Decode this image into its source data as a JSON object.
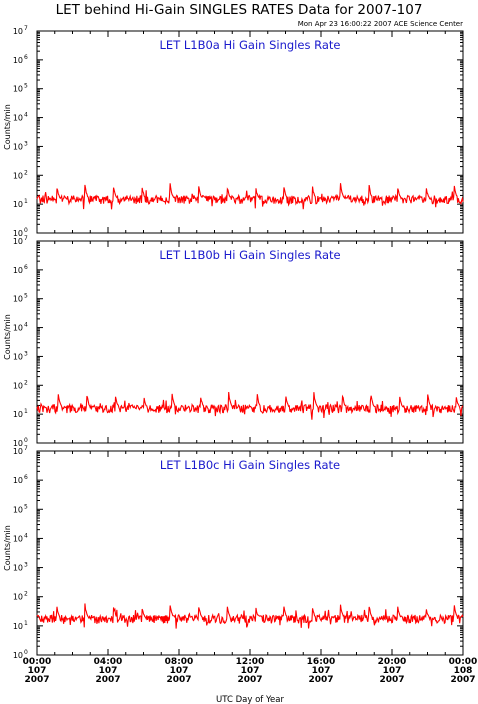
{
  "title": "LET behind Hi-Gain SINGLES RATES Data for 2007-107",
  "timestamp": "Mon Apr 23 16:00:22 2007 ACE Science Center",
  "colors": {
    "series": "#ff0000",
    "panel_title": "#1a1acc",
    "axis": "#000000"
  },
  "chart_data": {
    "type": "line",
    "xlabel": "UTC Day of Year",
    "x_range_hours": [
      0,
      24
    ],
    "x_ticks": [
      {
        "hour": 0,
        "time": "00:00",
        "day": "107",
        "year": "2007"
      },
      {
        "hour": 4,
        "time": "04:00",
        "day": "107",
        "year": "2007"
      },
      {
        "hour": 8,
        "time": "08:00",
        "day": "107",
        "year": "2007"
      },
      {
        "hour": 12,
        "time": "12:00",
        "day": "107",
        "year": "2007"
      },
      {
        "hour": 16,
        "time": "16:00",
        "day": "107",
        "year": "2007"
      },
      {
        "hour": 20,
        "time": "20:00",
        "day": "107",
        "year": "2007"
      },
      {
        "hour": 24,
        "time": "00:00",
        "day": "108",
        "year": "2007"
      }
    ],
    "y_scale": "log",
    "y_tick_exponents": [
      0,
      1,
      2,
      3,
      4,
      5,
      6,
      7
    ],
    "panels": [
      {
        "title": "LET L1B0a Hi Gain Singles Rate",
        "ylabel": "Counts/min",
        "ylim": [
          1,
          10000000
        ],
        "baseline": 15,
        "spike_peak": 50,
        "spike_period_hours": 1.6,
        "first_spike_hour": 1.1
      },
      {
        "title": "LET L1B0b Hi Gain Singles Rate",
        "ylabel": "Counts/min",
        "ylim": [
          1,
          10000000
        ],
        "baseline": 16,
        "spike_peak": 55,
        "spike_period_hours": 1.6,
        "first_spike_hour": 1.2
      },
      {
        "title": "LET L1B0c Hi Gain Singles Rate",
        "ylabel": "Counts/min",
        "ylim": [
          1,
          10000000
        ],
        "baseline": 18,
        "spike_peak": 55,
        "spike_period_hours": 1.6,
        "first_spike_hour": 1.1
      }
    ]
  }
}
